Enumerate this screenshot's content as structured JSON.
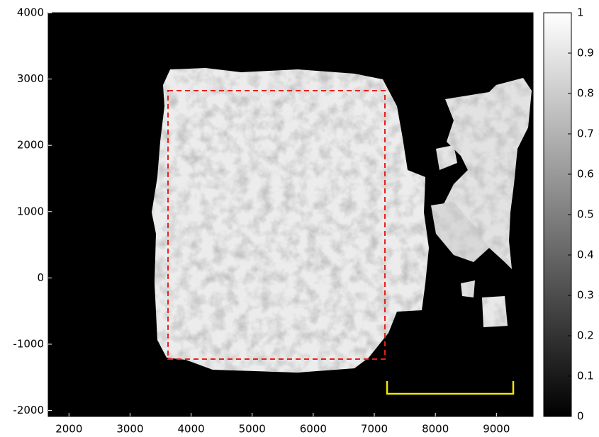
{
  "chart_data": {
    "type": "image",
    "xlim": [
      1660,
      9600
    ],
    "ylim": [
      -2090,
      4000
    ],
    "xticks": [
      2000,
      3000,
      4000,
      5000,
      6000,
      7000,
      8000,
      9000
    ],
    "yticks": [
      -2000,
      -1000,
      0,
      1000,
      2000,
      3000,
      4000
    ],
    "colorbar": {
      "lim": [
        0,
        1
      ],
      "ticks": [
        0,
        0.1,
        0.2,
        0.3,
        0.4,
        0.5,
        0.6,
        0.7,
        0.8,
        0.9,
        1
      ]
    },
    "roi_box": {
      "x": [
        3622,
        7174
      ],
      "y": [
        -1224,
        2825
      ],
      "color": "#e8201c"
    },
    "scale_bar": {
      "x": [
        7209,
        9275
      ],
      "y": -1748,
      "tick_top": -1556,
      "color": "#f2e600"
    }
  }
}
